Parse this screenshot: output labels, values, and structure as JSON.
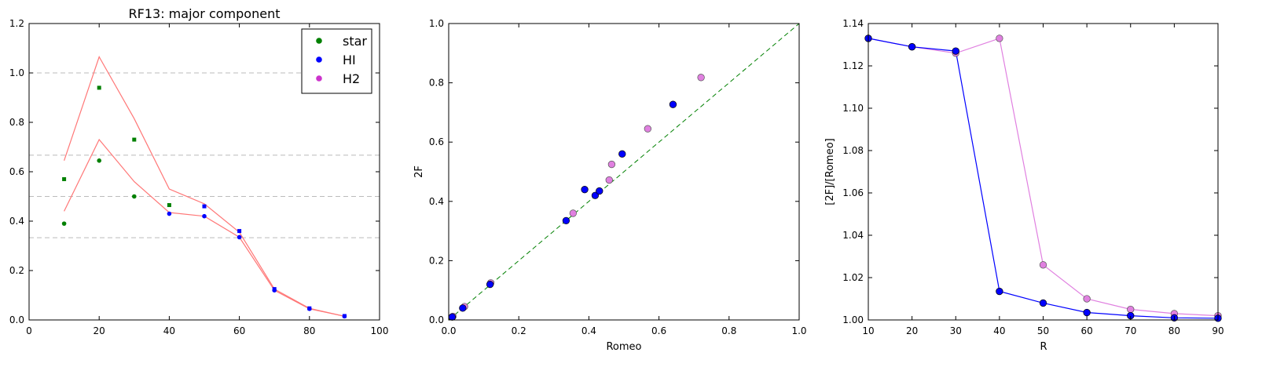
{
  "figure": {
    "colors": {
      "star": "#008000",
      "HI": "#0000ff",
      "H2": "#cc33cc",
      "H2_light": "#e080e0",
      "band": "#ff7777",
      "ref_lines": "#bbbbbb",
      "identity": "#008000"
    }
  },
  "chart_data": [
    {
      "type": "scatter",
      "title": "RF13: major component",
      "xlabel": "",
      "ylabel": "",
      "xlim": [
        0,
        100
      ],
      "ylim": [
        0.0,
        1.2
      ],
      "xticks": [
        "0",
        "20",
        "40",
        "60",
        "80",
        "100"
      ],
      "yticks": [
        "0.0",
        "0.2",
        "0.4",
        "0.6",
        "0.8",
        "1.0",
        "1.2"
      ],
      "reference_lines": [
        1.0,
        0.667,
        0.5,
        0.333
      ],
      "legend": {
        "placement": "top-right",
        "entries": [
          "star",
          "HI",
          "H2"
        ]
      },
      "series": [
        {
          "name": "star",
          "marker": "circle",
          "x": [
            10,
            20,
            30
          ],
          "y": [
            0.39,
            0.645,
            0.5
          ]
        },
        {
          "name": "star",
          "marker": "square",
          "x": [
            10,
            20,
            30,
            40
          ],
          "y": [
            0.57,
            0.94,
            0.73,
            0.465
          ]
        },
        {
          "name": "HI",
          "marker": "circle",
          "x": [
            40,
            50,
            60,
            70,
            80,
            90
          ],
          "y": [
            0.43,
            0.42,
            0.335,
            0.12,
            0.045,
            0.015
          ]
        },
        {
          "name": "HI",
          "marker": "square",
          "x": [
            50,
            60,
            70,
            80,
            90
          ],
          "y": [
            0.46,
            0.36,
            0.125,
            0.047,
            0.016
          ]
        }
      ],
      "band_lines": [
        {
          "x": [
            10,
            20,
            30,
            40,
            50,
            60,
            70,
            80,
            90
          ],
          "y": [
            0.44,
            0.73,
            0.56,
            0.435,
            0.42,
            0.335,
            0.12,
            0.045,
            0.015
          ]
        },
        {
          "x": [
            10,
            20,
            30,
            40,
            50,
            60,
            70,
            80,
            90
          ],
          "y": [
            0.645,
            1.065,
            0.815,
            0.53,
            0.47,
            0.355,
            0.125,
            0.047,
            0.015
          ]
        }
      ]
    },
    {
      "type": "scatter",
      "title": "",
      "xlabel": "Romeo",
      "ylabel": "2F",
      "xlim": [
        0.0,
        1.0
      ],
      "ylim": [
        0.0,
        1.0
      ],
      "xticks": [
        "0.0",
        "0.2",
        "0.4",
        "0.6",
        "0.8",
        "1.0"
      ],
      "yticks": [
        "0.0",
        "0.2",
        "0.4",
        "0.6",
        "0.8",
        "1.0"
      ],
      "identity_line": true,
      "series": [
        {
          "name": "HI",
          "x": [
            0.01,
            0.04,
            0.118,
            0.335,
            0.388,
            0.418,
            0.43,
            0.495,
            0.64
          ],
          "y": [
            0.01,
            0.04,
            0.12,
            0.335,
            0.44,
            0.42,
            0.435,
            0.56,
            0.727
          ]
        },
        {
          "name": "H2",
          "x": [
            0.012,
            0.045,
            0.12,
            0.355,
            0.458,
            0.465,
            0.568,
            0.72
          ],
          "y": [
            0.012,
            0.045,
            0.125,
            0.36,
            0.472,
            0.525,
            0.645,
            0.818
          ]
        }
      ]
    },
    {
      "type": "line",
      "title": "",
      "xlabel": "R",
      "ylabel": "[2F]/[Romeo]",
      "xlim": [
        10,
        90
      ],
      "ylim": [
        1.0,
        1.14
      ],
      "xticks": [
        "10",
        "20",
        "30",
        "40",
        "50",
        "60",
        "70",
        "80",
        "90"
      ],
      "yticks": [
        "1.00",
        "1.02",
        "1.04",
        "1.06",
        "1.08",
        "1.10",
        "1.12",
        "1.14"
      ],
      "series": [
        {
          "name": "H2",
          "x": [
            10,
            20,
            30,
            40,
            50,
            60,
            70,
            80,
            90
          ],
          "y": [
            1.133,
            1.129,
            1.126,
            1.133,
            1.026,
            1.01,
            1.005,
            1.003,
            1.002
          ]
        },
        {
          "name": "HI",
          "x": [
            10,
            20,
            30,
            40,
            50,
            60,
            70,
            80,
            90
          ],
          "y": [
            1.133,
            1.129,
            1.127,
            1.0135,
            1.008,
            1.0035,
            1.002,
            1.001,
            1.0008
          ]
        }
      ]
    }
  ]
}
